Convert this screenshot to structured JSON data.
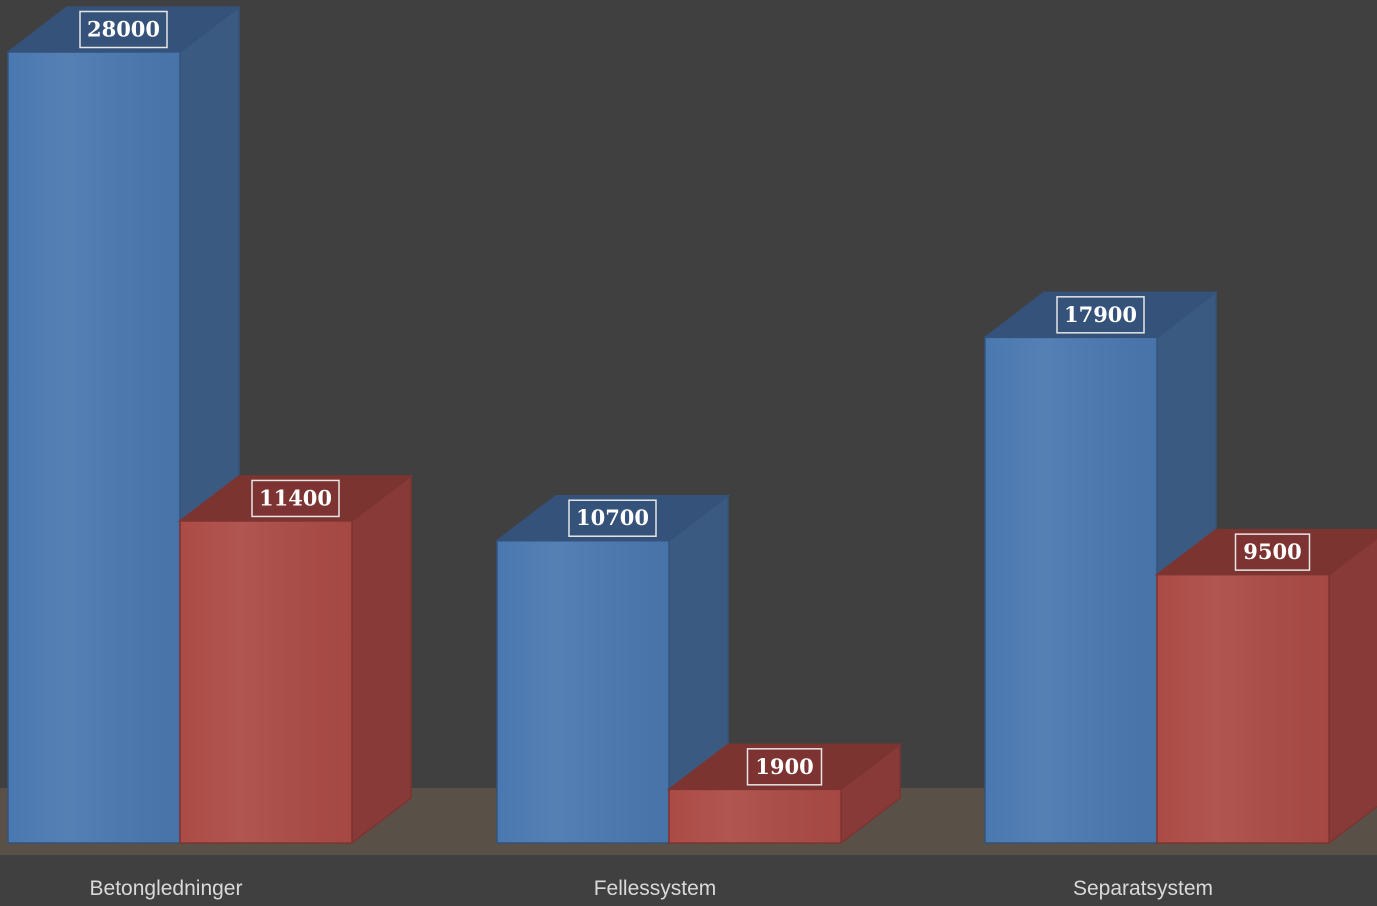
{
  "chart_data": {
    "type": "bar",
    "style": "3d-clustered-column",
    "categories": [
      "Betongledninger",
      "Fellessystem",
      "Separatsystem"
    ],
    "series": [
      {
        "values": [
          28000,
          10700,
          17900
        ]
      },
      {
        "values": [
          11400,
          1900,
          9500
        ]
      }
    ],
    "data_labels": true,
    "ylim": [
      0,
      28000
    ],
    "grid": false,
    "legend": "none",
    "colors": {
      "background": "#404040",
      "floor": "#595148",
      "series_front": [
        "#4A78B0",
        "#AC4B46"
      ],
      "series_side": [
        "#3A5A82",
        "#883A38"
      ],
      "series_top": [
        "#35527A",
        "#7C3431"
      ],
      "category_label": "#D9D9D9",
      "data_label_text": "#FFFFFF"
    }
  }
}
